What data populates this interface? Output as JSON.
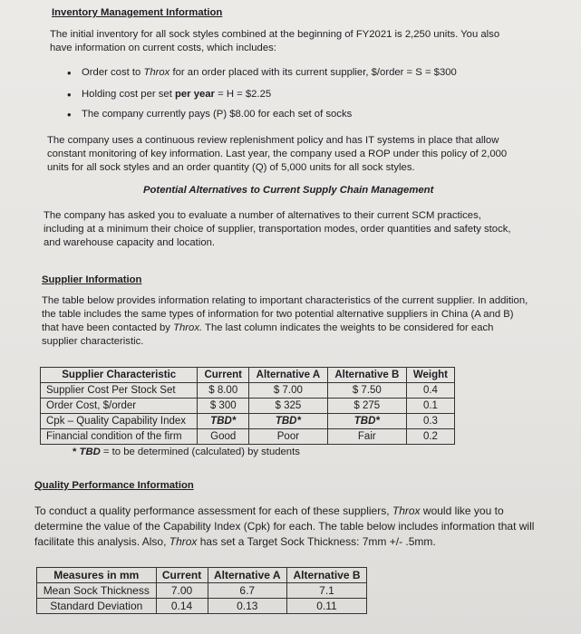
{
  "title": "Inventory Management Information",
  "intro": "The initial inventory for all sock styles combined at the beginning of FY2021 is 2,250 units.  You also have information on current costs, which includes:",
  "bullets": {
    "b1a": "Order cost to ",
    "b1b": "Throx",
    "b1c": " for an order placed with its current supplier, $/order = S = $300",
    "b2a": "Holding cost per set ",
    "b2b": "per year",
    "b2c": " = H = $2.25",
    "b3": "The company currently pays (P) $8.00 for each set of socks"
  },
  "policy": "The company uses a continuous review replenishment policy and has IT systems in place that allow constant monitoring of key information. Last year, the company used a ROP under this policy of 2,000 units for all sock styles and an order quantity (Q) of 5,000 units for all sock styles.",
  "alt_heading": "Potential Alternatives to Current Supply Chain Management",
  "alt_text": "The company has asked you to evaluate a number of alternatives to their current SCM practices, including at a minimum their choice of supplier, transportation modes, order quantities and safety stock, and warehouse capacity and location.",
  "supplier_heading": "Supplier Information",
  "supplier_text_a": "The table below provides information relating to important characteristics of the current supplier.  In addition, the table includes the same types of information for two potential alternative suppliers in China (A and B) that have been contacted by ",
  "supplier_text_b": "Throx.",
  "supplier_text_c": "  The last column indicates the weights to be considered for each supplier characteristic.",
  "supplier_table": {
    "headers": [
      "Supplier Characteristic",
      "Current",
      "Alternative A",
      "Alternative B",
      "Weight"
    ],
    "rows": [
      [
        "Supplier Cost Per Stock Set",
        "$ 8.00",
        "$ 7.00",
        "$ 7.50",
        "0.4"
      ],
      [
        "Order Cost, $/order",
        "$ 300",
        "$ 325",
        "$ 275",
        "0.1"
      ],
      [
        "Cpk – Quality Capability Index",
        "TBD*",
        "TBD*",
        "TBD*",
        "0.3"
      ],
      [
        "Financial condition of the firm",
        "Good",
        "Poor",
        "Fair",
        "0.2"
      ]
    ],
    "footnote_a": "* ",
    "footnote_b": "TBD",
    "footnote_c": " = to be determined (calculated) by students"
  },
  "quality_heading": "Quality Performance Information",
  "quality_text_a": "To conduct a quality performance assessment for each of these suppliers, ",
  "quality_text_b": "Throx",
  "quality_text_c": " would like you to determine the value of the Capability Index (Cpk) for each.  The table below includes information that will facilitate this analysis.  Also, ",
  "quality_text_d": "Throx",
  "quality_text_e": " has set a Target Sock Thickness: 7mm +/- .5mm.",
  "quality_table": {
    "headers": [
      "Measures in mm",
      "Current",
      "Alternative A",
      "Alternative B"
    ],
    "rows": [
      [
        "Mean Sock Thickness",
        "7.00",
        "6.7",
        "7.1"
      ],
      [
        "Standard Deviation",
        "0.14",
        "0.13",
        "0.11"
      ]
    ]
  }
}
